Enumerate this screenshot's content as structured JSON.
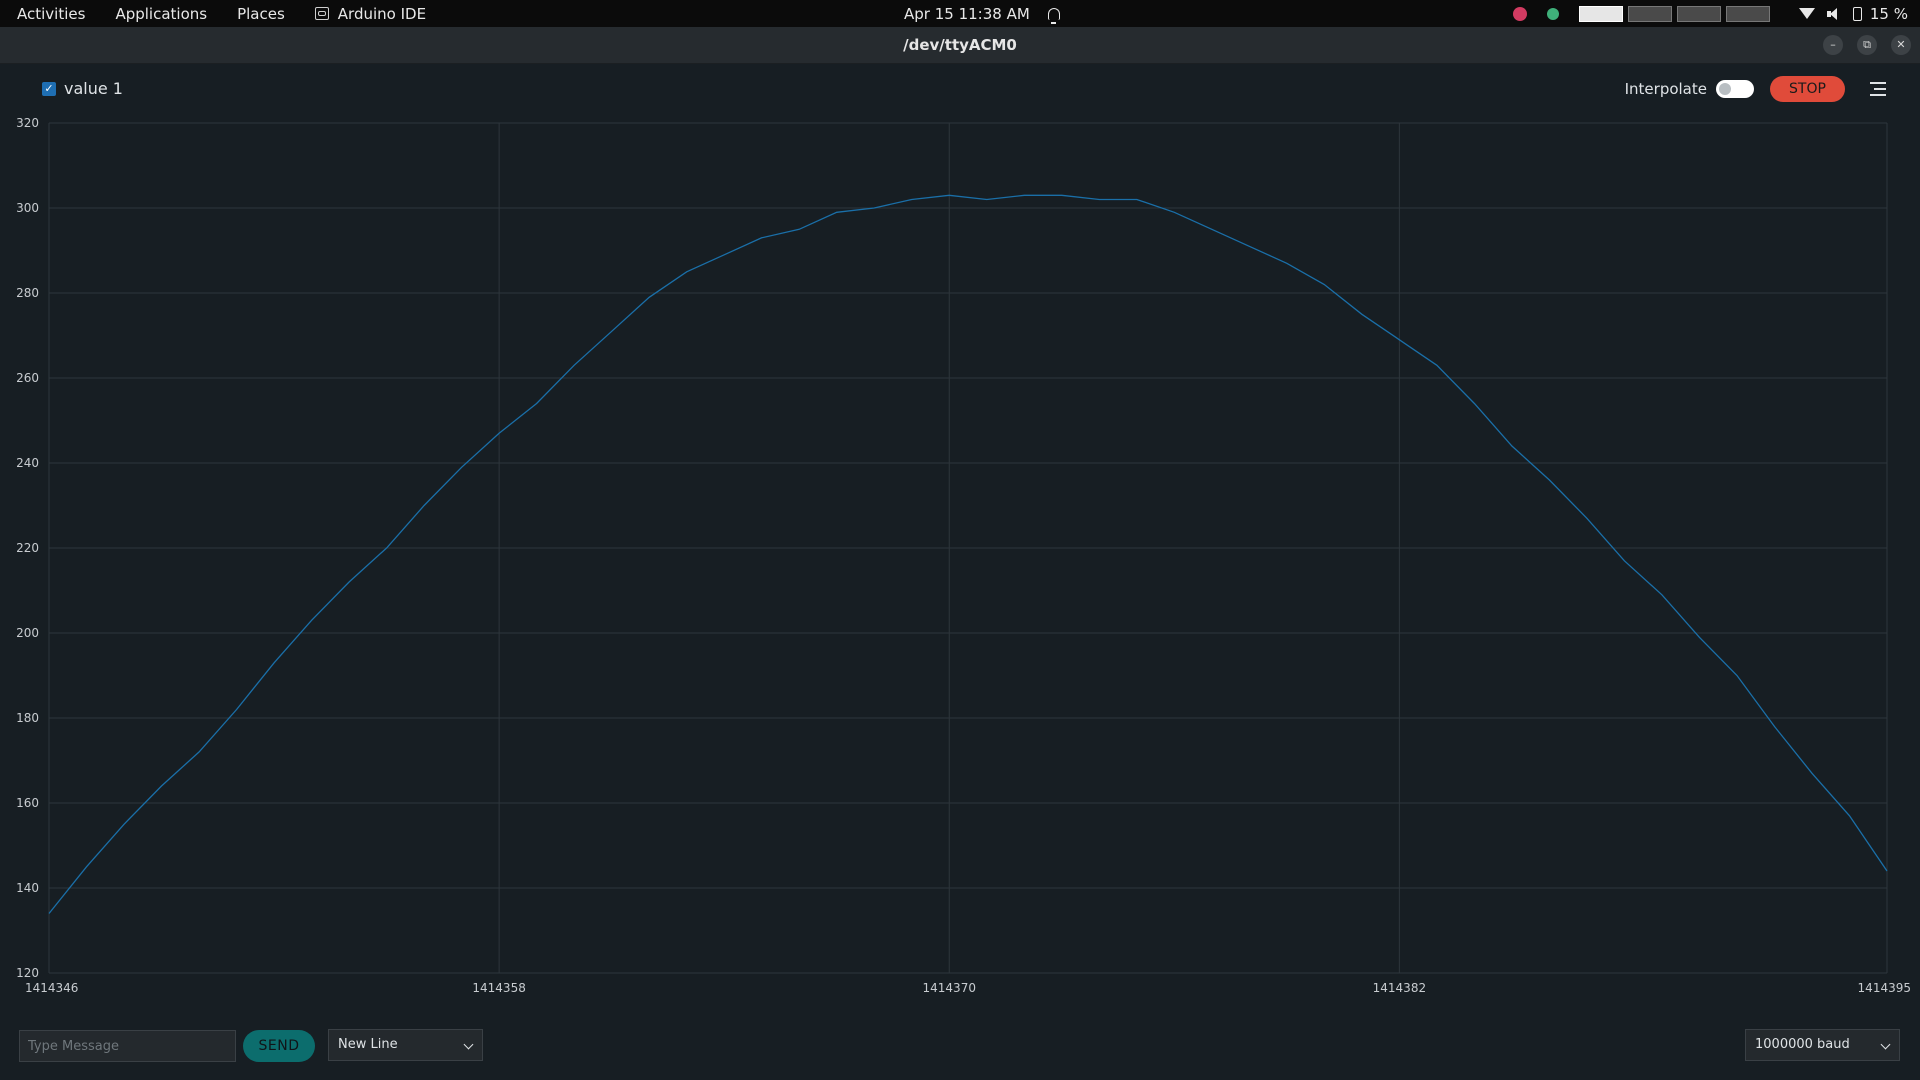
{
  "topbar": {
    "activities": "Activities",
    "applications": "Applications",
    "places": "Places",
    "app_name": "Arduino IDE",
    "clock": "Apr 15  11:38 AM",
    "battery": "15 %"
  },
  "window": {
    "title": "/dev/ttyACM0",
    "minimize": "–",
    "restore": "⧉",
    "close": "✕"
  },
  "plotter": {
    "legend_label": "value 1",
    "legend_checked": "✓",
    "interpolate_label": "Interpolate",
    "interpolate_on": false,
    "stop_label": "STOP"
  },
  "bottom": {
    "message_placeholder": "Type Message",
    "send_label": "SEND",
    "line_ending": "New Line",
    "baud": "1000000 baud"
  },
  "colors": {
    "line": "#1a6fa8",
    "grid": "#2e363c",
    "stop": "#e04b3a",
    "send": "#0c6d6d"
  },
  "chart_data": {
    "type": "line",
    "series": [
      {
        "name": "value 1",
        "x": [
          1414346,
          1414347,
          1414348,
          1414349,
          1414350,
          1414351,
          1414352,
          1414353,
          1414354,
          1414355,
          1414356,
          1414357,
          1414358,
          1414359,
          1414360,
          1414361,
          1414362,
          1414363,
          1414364,
          1414365,
          1414366,
          1414367,
          1414368,
          1414369,
          1414370,
          1414371,
          1414372,
          1414373,
          1414374,
          1414375,
          1414376,
          1414377,
          1414378,
          1414379,
          1414380,
          1414381,
          1414382,
          1414383,
          1414384,
          1414385,
          1414386,
          1414387,
          1414388,
          1414389,
          1414390,
          1414391,
          1414392,
          1414393,
          1414394,
          1414395
        ],
        "values": [
          134,
          145,
          155,
          164,
          172,
          182,
          193,
          203,
          212,
          220,
          230,
          239,
          247,
          254,
          263,
          271,
          279,
          285,
          289,
          293,
          295,
          299,
          300,
          302,
          303,
          302,
          303,
          303,
          302,
          302,
          299,
          295,
          291,
          287,
          282,
          275,
          269,
          263,
          254,
          244,
          236,
          227,
          217,
          209,
          199,
          190,
          178,
          167,
          157,
          144
        ]
      }
    ],
    "x_ticks": [
      1414346,
      1414358,
      1414370,
      1414382,
      1414395
    ],
    "y_ticks": [
      120,
      140,
      160,
      180,
      200,
      220,
      240,
      260,
      280,
      300,
      320
    ],
    "xlim": [
      1414346,
      1414395
    ],
    "ylim": [
      120,
      320
    ],
    "grid": true
  }
}
